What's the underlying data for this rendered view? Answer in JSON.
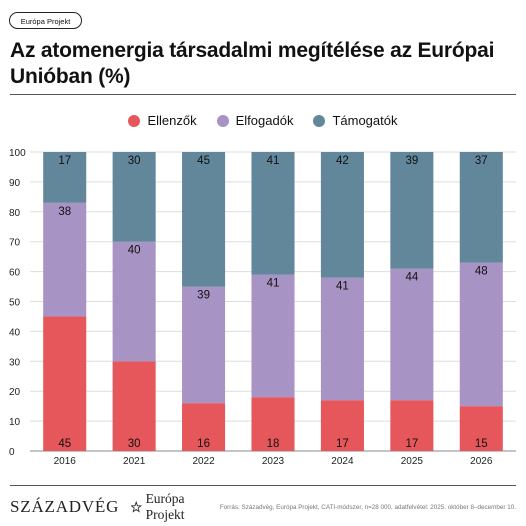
{
  "badge": "Európa Projekt",
  "title": "Az atomenergia társadalmi megítélése az Európai Unióban (%)",
  "legend": [
    {
      "label": "Ellenzők",
      "color": "#e5575a"
    },
    {
      "label": "Elfogadók",
      "color": "#a793c4"
    },
    {
      "label": "Támogatók",
      "color": "#62879a"
    }
  ],
  "chart_data": {
    "type": "bar",
    "stacked": true,
    "categories": [
      "2016",
      "2021",
      "2022",
      "2023",
      "2024",
      "2025",
      "2026"
    ],
    "series": [
      {
        "name": "Ellenzők",
        "color": "#e5575a",
        "values": [
          45,
          30,
          16,
          18,
          17,
          17,
          15
        ]
      },
      {
        "name": "Elfogadók",
        "color": "#a793c4",
        "values": [
          38,
          40,
          39,
          41,
          41,
          44,
          48
        ]
      },
      {
        "name": "Támogatók",
        "color": "#62879a",
        "values": [
          17,
          30,
          45,
          41,
          42,
          39,
          37
        ]
      }
    ],
    "ylim": [
      0,
      100
    ],
    "yticks": [
      0,
      10,
      20,
      30,
      40,
      50,
      60,
      70,
      80,
      90,
      100
    ],
    "grid": true,
    "legend_position": "top-center"
  },
  "footer": {
    "brand": "SZÁZADVÉG",
    "logo_text": "Európa Projekt",
    "logo_icon": "star-icon",
    "source": "Forrás: Századvég, Európa Projekt, CATI-módszer, n=28 000, adatfelvétel: 2025. október 8–december 10."
  }
}
